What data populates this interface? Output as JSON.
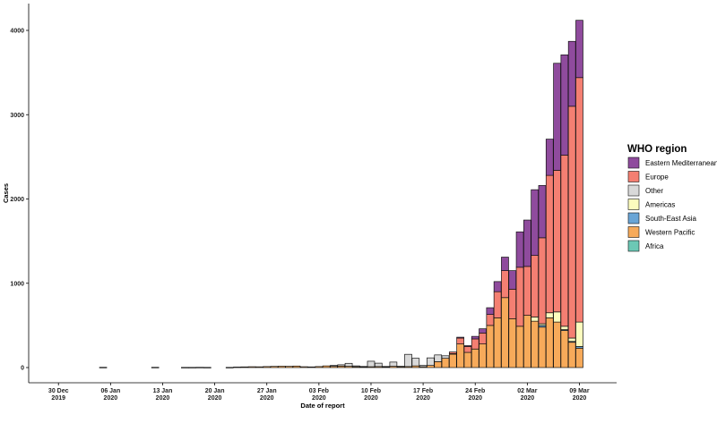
{
  "chart_data": {
    "type": "bar",
    "stacked": true,
    "xlabel": "Date of report",
    "ylabel": "Cases",
    "ylim": [
      0,
      4200
    ],
    "yticks": [
      0,
      1000,
      2000,
      3000,
      4000
    ],
    "x_range": [
      "2019-12-26",
      "2020-03-14"
    ],
    "x_ticks": [
      {
        "date": "2019-12-30",
        "line1": "30 Dec",
        "line2": "2019"
      },
      {
        "date": "2020-01-06",
        "line1": "06 Jan",
        "line2": "2020"
      },
      {
        "date": "2020-01-13",
        "line1": "13 Jan",
        "line2": "2020"
      },
      {
        "date": "2020-01-20",
        "line1": "20 Jan",
        "line2": "2020"
      },
      {
        "date": "2020-01-27",
        "line1": "27 Jan",
        "line2": "2020"
      },
      {
        "date": "2020-02-03",
        "line1": "03 Feb",
        "line2": "2020"
      },
      {
        "date": "2020-02-10",
        "line1": "10 Feb",
        "line2": "2020"
      },
      {
        "date": "2020-02-17",
        "line1": "17 Feb",
        "line2": "2020"
      },
      {
        "date": "2020-02-24",
        "line1": "24 Feb",
        "line2": "2020"
      },
      {
        "date": "2020-03-02",
        "line1": "02 Mar",
        "line2": "2020"
      },
      {
        "date": "2020-03-09",
        "line1": "09 Mar",
        "line2": "2020"
      }
    ],
    "legend_title": "WHO region",
    "legend_position": "right",
    "grid": false,
    "series": [
      {
        "name": "Africa",
        "color": "#6cc8b5"
      },
      {
        "name": "Western Pacific",
        "color": "#f7aa5a"
      },
      {
        "name": "South-East Asia",
        "color": "#6aa5d6"
      },
      {
        "name": "Americas",
        "color": "#fcfcbe"
      },
      {
        "name": "Other",
        "color": "#d9d9d9"
      },
      {
        "name": "Europe",
        "color": "#f47f72"
      },
      {
        "name": "Eastern Mediterranean",
        "color": "#8f4b9d"
      }
    ],
    "bars": [
      {
        "date": "2020-01-05",
        "Western Pacific": 3
      },
      {
        "date": "2020-01-12",
        "Western Pacific": 3
      },
      {
        "date": "2020-01-16",
        "Western Pacific": 2
      },
      {
        "date": "2020-01-17",
        "Western Pacific": 2
      },
      {
        "date": "2020-01-18",
        "Western Pacific": 3
      },
      {
        "date": "2020-01-19",
        "Western Pacific": 2
      },
      {
        "date": "2020-01-22",
        "Western Pacific": 2
      },
      {
        "date": "2020-01-23",
        "Western Pacific": 6
      },
      {
        "date": "2020-01-24",
        "Western Pacific": 8
      },
      {
        "date": "2020-01-25",
        "Western Pacific": 10
      },
      {
        "date": "2020-01-26",
        "Western Pacific": 9
      },
      {
        "date": "2020-01-27",
        "Western Pacific": 12
      },
      {
        "date": "2020-01-28",
        "Western Pacific": 14
      },
      {
        "date": "2020-01-29",
        "Western Pacific": 16
      },
      {
        "date": "2020-01-30",
        "Western Pacific": 15
      },
      {
        "date": "2020-01-31",
        "Western Pacific": 18
      },
      {
        "date": "2020-02-01",
        "Western Pacific": 10
      },
      {
        "date": "2020-02-02",
        "Western Pacific": 8
      },
      {
        "date": "2020-02-03",
        "Western Pacific": 12
      },
      {
        "date": "2020-02-04",
        "Western Pacific": 20
      },
      {
        "date": "2020-02-05",
        "Western Pacific": 15,
        "Other": 10
      },
      {
        "date": "2020-02-06",
        "Western Pacific": 18,
        "Other": 15
      },
      {
        "date": "2020-02-07",
        "Western Pacific": 15,
        "Other": 35
      },
      {
        "date": "2020-02-08",
        "Western Pacific": 10,
        "Other": 10
      },
      {
        "date": "2020-02-09",
        "Western Pacific": 8,
        "Other": 5
      },
      {
        "date": "2020-02-10",
        "Western Pacific": 10,
        "Other": 65
      },
      {
        "date": "2020-02-11",
        "Western Pacific": 12,
        "Other": 40
      },
      {
        "date": "2020-02-12",
        "Western Pacific": 8,
        "Other": 5
      },
      {
        "date": "2020-02-13",
        "Western Pacific": 15,
        "Other": 50
      },
      {
        "date": "2020-02-14",
        "Western Pacific": 10,
        "Other": 5
      },
      {
        "date": "2020-02-15",
        "Western Pacific": 12,
        "Other": 145
      },
      {
        "date": "2020-02-16",
        "Western Pacific": 20,
        "Other": 90
      },
      {
        "date": "2020-02-17",
        "Western Pacific": 10,
        "Other": 15
      },
      {
        "date": "2020-02-18",
        "Western Pacific": 25,
        "Other": 90
      },
      {
        "date": "2020-02-19",
        "Western Pacific": 70,
        "Other": 80
      },
      {
        "date": "2020-02-20",
        "Western Pacific": 110,
        "Other": 30
      },
      {
        "date": "2020-02-21",
        "Western Pacific": 160,
        "Europe": 20,
        "Other": 5
      },
      {
        "date": "2020-02-22",
        "Western Pacific": 280,
        "Europe": 70,
        "Eastern Mediterranean": 10
      },
      {
        "date": "2020-02-23",
        "Western Pacific": 180,
        "Europe": 70,
        "Eastern Mediterranean": 10
      },
      {
        "date": "2020-02-24",
        "Western Pacific": 220,
        "Europe": 120,
        "Eastern Mediterranean": 30
      },
      {
        "date": "2020-02-25",
        "Western Pacific": 280,
        "Europe": 130,
        "Eastern Mediterranean": 50
      },
      {
        "date": "2020-02-26",
        "Western Pacific": 500,
        "Europe": 130,
        "Eastern Mediterranean": 80
      },
      {
        "date": "2020-02-27",
        "Western Pacific": 590,
        "Europe": 310,
        "Eastern Mediterranean": 120
      },
      {
        "date": "2020-02-28",
        "Western Pacific": 830,
        "Europe": 320,
        "Eastern Mediterranean": 160
      },
      {
        "date": "2020-02-29",
        "Western Pacific": 580,
        "Europe": 350,
        "Eastern Mediterranean": 220
      },
      {
        "date": "2020-03-01",
        "Western Pacific": 490,
        "Europe": 700,
        "Eastern Mediterranean": 420
      },
      {
        "date": "2020-03-02",
        "Western Pacific": 620,
        "Europe": 580,
        "Eastern Mediterranean": 550
      },
      {
        "date": "2020-03-03",
        "Western Pacific": 550,
        "Europe": 730,
        "Eastern Mediterranean": 780,
        "Americas": 50
      },
      {
        "date": "2020-03-04",
        "Western Pacific": 480,
        "Europe": 1020,
        "Eastern Mediterranean": 620,
        "Americas": 20,
        "South-East Asia": 20
      },
      {
        "date": "2020-03-05",
        "Western Pacific": 590,
        "Europe": 1630,
        "Eastern Mediterranean": 430,
        "Americas": 60
      },
      {
        "date": "2020-03-06",
        "Western Pacific": 540,
        "Europe": 1680,
        "Eastern Mediterranean": 1270,
        "Americas": 120
      },
      {
        "date": "2020-03-07",
        "Western Pacific": 440,
        "Europe": 2030,
        "Eastern Mediterranean": 1190,
        "Americas": 40,
        "South-East Asia": 10
      },
      {
        "date": "2020-03-08",
        "Western Pacific": 300,
        "Europe": 2750,
        "Eastern Mediterranean": 770,
        "Americas": 40,
        "South-East Asia": 10
      },
      {
        "date": "2020-03-09",
        "Western Pacific": 230,
        "Europe": 2900,
        "Eastern Mediterranean": 680,
        "Americas": 290,
        "South-East Asia": 20
      }
    ]
  }
}
